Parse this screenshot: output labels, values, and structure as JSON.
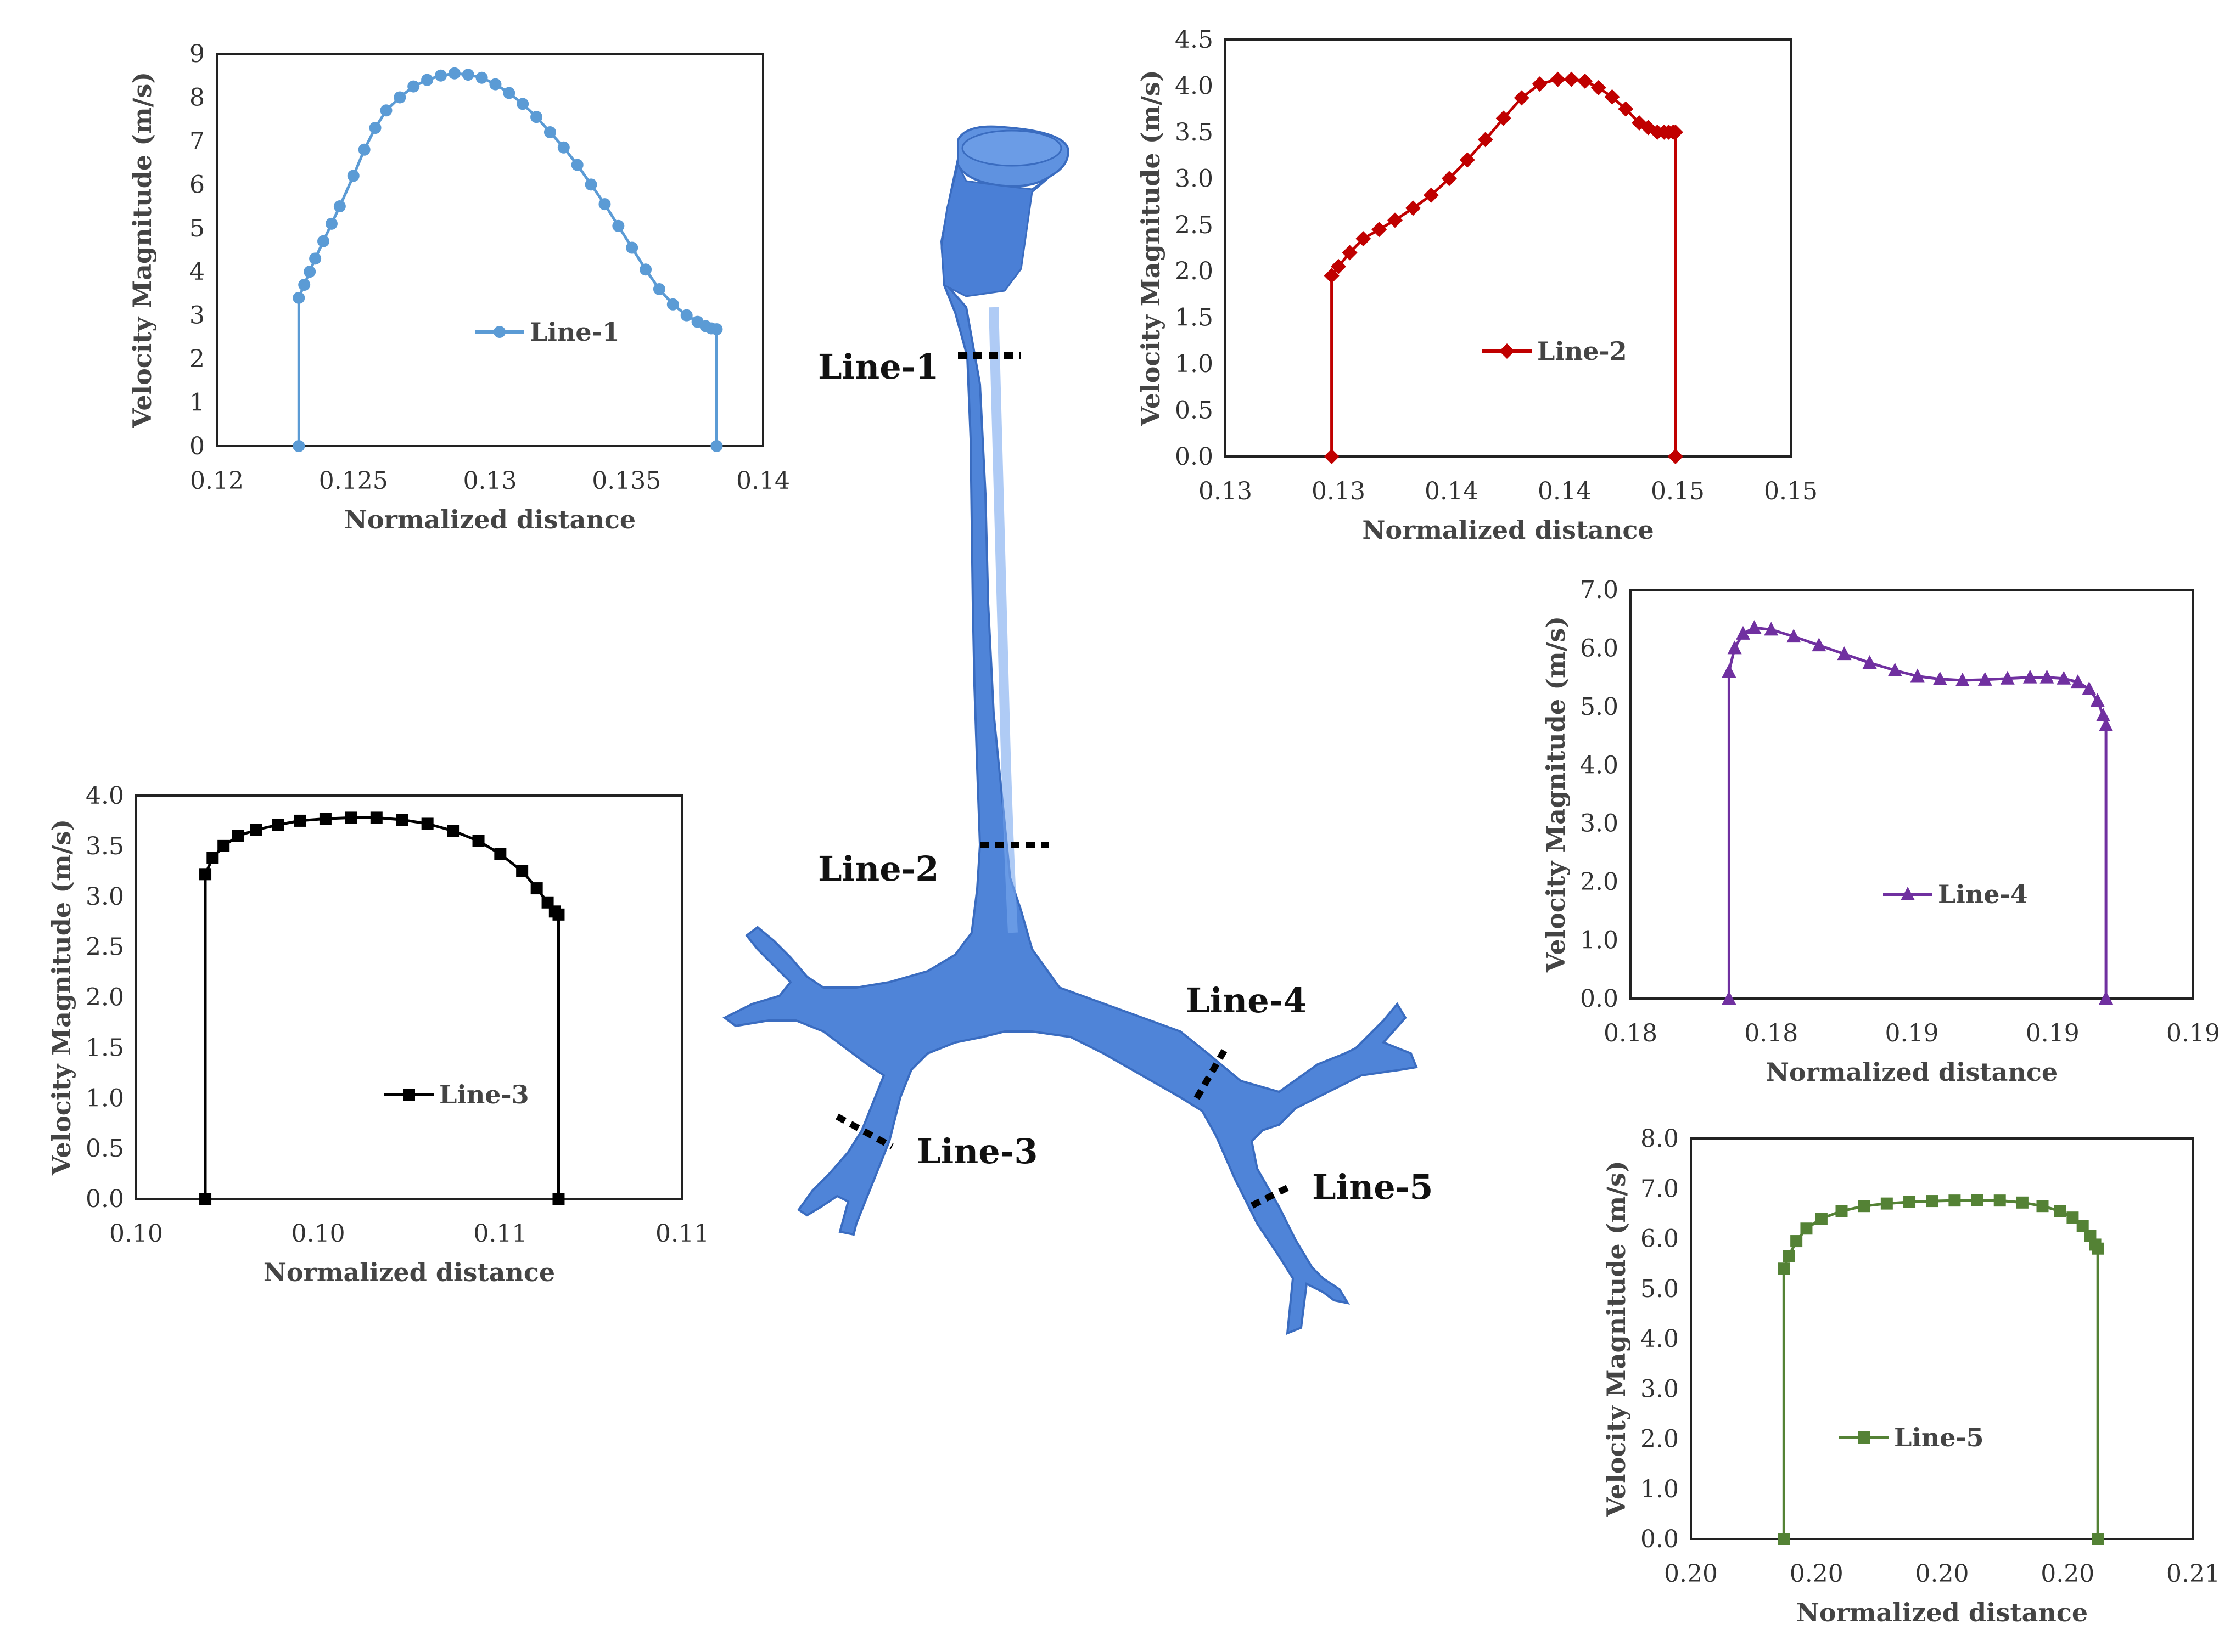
{
  "airway_labels": [
    "Line-1",
    "Line-2",
    "Line-3",
    "Line-4",
    "Line-5"
  ],
  "colors": {
    "line1": "#5b9bd5",
    "line2": "#c00000",
    "line3": "#000000",
    "line4": "#7030a0",
    "line5": "#548235",
    "airway": "#4f84d8"
  },
  "chart_data": [
    {
      "type": "line",
      "ylabel": "Velocity Magnitude (m/s)",
      "xlabel": "Normalized distance",
      "xtick_labels": [
        "0.12",
        "0.125",
        "0.13",
        "0.135",
        "0.14"
      ],
      "ytick_labels": [
        "0",
        "1",
        "2",
        "3",
        "4",
        "5",
        "6",
        "7",
        "8",
        "9"
      ],
      "xlim": [
        0.12,
        0.14
      ],
      "ylim": [
        0,
        9
      ],
      "grid": false,
      "legend_position": "center",
      "series": [
        {
          "name": "Line-1",
          "color": "#5b9bd5",
          "marker": "circle",
          "x": [
            0.123,
            0.123,
            0.1232,
            0.1234,
            0.1236,
            0.1239,
            0.1242,
            0.1245,
            0.125,
            0.1254,
            0.1258,
            0.1262,
            0.1267,
            0.1272,
            0.1277,
            0.1282,
            0.1287,
            0.1292,
            0.1297,
            0.1302,
            0.1307,
            0.1312,
            0.1317,
            0.1322,
            0.1327,
            0.1332,
            0.1337,
            0.1342,
            0.1347,
            0.1352,
            0.1357,
            0.1362,
            0.1367,
            0.1372,
            0.1376,
            0.1379,
            0.1381,
            0.1383,
            0.1383
          ],
          "y": [
            0.0,
            3.4,
            3.7,
            4.0,
            4.3,
            4.7,
            5.1,
            5.5,
            6.2,
            6.8,
            7.3,
            7.7,
            8.0,
            8.25,
            8.4,
            8.5,
            8.55,
            8.52,
            8.45,
            8.3,
            8.1,
            7.85,
            7.55,
            7.2,
            6.85,
            6.45,
            6.0,
            5.55,
            5.05,
            4.55,
            4.05,
            3.6,
            3.25,
            3.0,
            2.85,
            2.75,
            2.7,
            2.68,
            0.0
          ]
        }
      ]
    },
    {
      "type": "line",
      "ylabel": "Velocity Magnitude (m/s)",
      "xlabel": "Normalized distance",
      "xtick_labels": [
        "0.13",
        "0.13",
        "0.14",
        "0.14",
        "0.15",
        "0.15"
      ],
      "ytick_labels": [
        "0.0",
        "0.5",
        "1.0",
        "1.5",
        "2.0",
        "2.5",
        "3.0",
        "3.5",
        "4.0",
        "4.5"
      ],
      "xlim": [
        0.1275,
        0.1525
      ],
      "ylim": [
        0,
        4.5
      ],
      "grid": false,
      "legend_position": "center",
      "series": [
        {
          "name": "Line-2",
          "color": "#c00000",
          "marker": "diamond",
          "x": [
            0.1322,
            0.1322,
            0.1325,
            0.133,
            0.1336,
            0.1343,
            0.135,
            0.1358,
            0.1366,
            0.1374,
            0.1382,
            0.139,
            0.1398,
            0.1406,
            0.1414,
            0.1422,
            0.1428,
            0.1434,
            0.144,
            0.1446,
            0.1452,
            0.1458,
            0.1462,
            0.1466,
            0.1469,
            0.1471,
            0.1473,
            0.1474,
            0.1474
          ],
          "y": [
            0.0,
            1.95,
            2.05,
            2.2,
            2.35,
            2.45,
            2.55,
            2.68,
            2.82,
            3.0,
            3.2,
            3.42,
            3.65,
            3.87,
            4.02,
            4.07,
            4.07,
            4.05,
            3.98,
            3.88,
            3.75,
            3.6,
            3.55,
            3.5,
            3.5,
            3.5,
            3.5,
            3.5,
            0.0
          ]
        }
      ]
    },
    {
      "type": "line",
      "ylabel": "Velocity Magnitude (m/s)",
      "xlabel": "Normalized distance",
      "xtick_labels": [
        "0.10",
        "0.10",
        "0.11",
        "0.11"
      ],
      "ytick_labels": [
        "0.0",
        "0.5",
        "1.0",
        "1.5",
        "2.0",
        "2.5",
        "3.0",
        "3.5",
        "4.0"
      ],
      "xlim": [
        0.1,
        0.115
      ],
      "ylim": [
        0,
        4.0
      ],
      "grid": false,
      "legend_position": "center",
      "series": [
        {
          "name": "Line-3",
          "color": "#000000",
          "marker": "square",
          "x": [
            0.1019,
            0.1019,
            0.1021,
            0.1024,
            0.1028,
            0.1033,
            0.1039,
            0.1045,
            0.1052,
            0.1059,
            0.1066,
            0.1073,
            0.108,
            0.1087,
            0.1094,
            0.11,
            0.1106,
            0.111,
            0.1113,
            0.1115,
            0.1116,
            0.1116
          ],
          "y": [
            0.0,
            3.22,
            3.38,
            3.5,
            3.6,
            3.66,
            3.71,
            3.75,
            3.77,
            3.78,
            3.78,
            3.76,
            3.72,
            3.65,
            3.55,
            3.42,
            3.25,
            3.08,
            2.94,
            2.85,
            2.82,
            0.0
          ]
        }
      ]
    },
    {
      "type": "line",
      "ylabel": "Velocity Magnitude (m/s)",
      "xlabel": "Normalized distance",
      "xtick_labels": [
        "0.18",
        "0.18",
        "0.19",
        "0.19",
        "0.19"
      ],
      "ytick_labels": [
        "0.0",
        "1.0",
        "2.0",
        "3.0",
        "4.0",
        "5.0",
        "6.0",
        "7.0"
      ],
      "xlim": [
        0.175,
        0.195
      ],
      "ylim": [
        0,
        7.0
      ],
      "grid": false,
      "legend_position": "center",
      "series": [
        {
          "name": "Line-4",
          "color": "#7030a0",
          "marker": "triangle",
          "x": [
            0.1785,
            0.1785,
            0.1787,
            0.179,
            0.1794,
            0.18,
            0.1808,
            0.1817,
            0.1826,
            0.1835,
            0.1844,
            0.1852,
            0.186,
            0.1868,
            0.1876,
            0.1884,
            0.1892,
            0.1898,
            0.1904,
            0.1909,
            0.1913,
            0.1916,
            0.1918,
            0.1919,
            0.1919
          ],
          "y": [
            0.0,
            5.6,
            6.0,
            6.25,
            6.35,
            6.32,
            6.2,
            6.05,
            5.9,
            5.75,
            5.62,
            5.52,
            5.47,
            5.45,
            5.46,
            5.48,
            5.5,
            5.5,
            5.48,
            5.42,
            5.3,
            5.1,
            4.85,
            4.68,
            0.0
          ]
        }
      ]
    },
    {
      "type": "line",
      "ylabel": "Velocity Magnitude (m/s)",
      "xlabel": "Normalized distance",
      "xtick_labels": [
        "0.20",
        "0.20",
        "0.20",
        "0.20",
        "0.21"
      ],
      "ytick_labels": [
        "0.0",
        "1.0",
        "2.0",
        "3.0",
        "4.0",
        "5.0",
        "6.0",
        "7.0",
        "8.0"
      ],
      "xlim": [
        0.195,
        0.215
      ],
      "ylim": [
        0,
        8.0
      ],
      "grid": false,
      "legend_position": "center",
      "series": [
        {
          "name": "Line-5",
          "color": "#548235",
          "marker": "square",
          "x": [
            0.1987,
            0.1987,
            0.1989,
            0.1992,
            0.1996,
            0.2002,
            0.201,
            0.2019,
            0.2028,
            0.2037,
            0.2046,
            0.2055,
            0.2064,
            0.2073,
            0.2082,
            0.209,
            0.2097,
            0.2102,
            0.2106,
            0.2109,
            0.2111,
            0.2112,
            0.2112
          ],
          "y": [
            0.0,
            5.4,
            5.65,
            5.95,
            6.2,
            6.4,
            6.55,
            6.65,
            6.7,
            6.73,
            6.75,
            6.76,
            6.77,
            6.76,
            6.72,
            6.65,
            6.55,
            6.42,
            6.25,
            6.05,
            5.88,
            5.8,
            0.0
          ]
        }
      ]
    }
  ]
}
